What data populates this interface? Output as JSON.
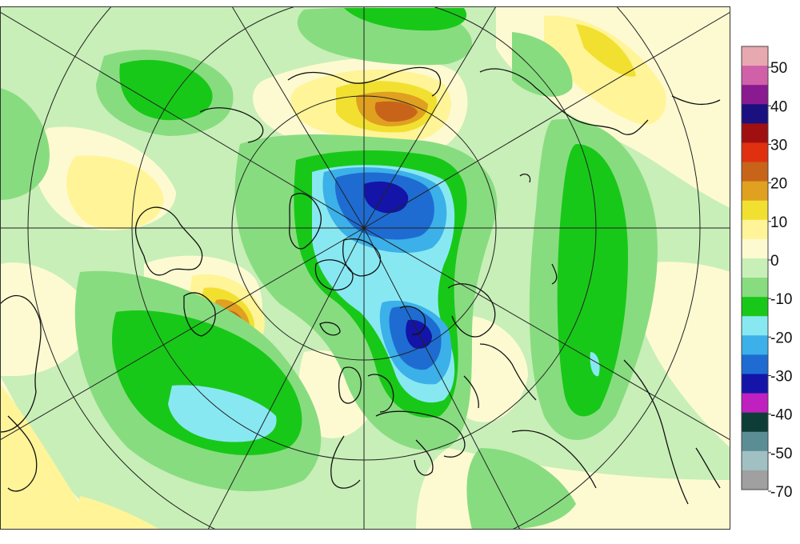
{
  "map": {
    "projection": "north-polar-stereographic",
    "graticule": true,
    "coastlines": true
  },
  "colorbar": {
    "ticks": [
      {
        "label": "50",
        "value": 50
      },
      {
        "label": "40",
        "value": 40
      },
      {
        "label": "30",
        "value": 30
      },
      {
        "label": "20",
        "value": 20
      },
      {
        "label": "10",
        "value": 10
      },
      {
        "label": "0",
        "value": 0
      },
      {
        "label": "-10",
        "value": -10
      },
      {
        "label": "-20",
        "value": -20
      },
      {
        "label": "-30",
        "value": -30
      },
      {
        "label": "-40",
        "value": -40
      },
      {
        "label": "-50",
        "value": -50
      },
      {
        "label": "-70",
        "value": -70
      }
    ],
    "colors_top_to_bottom": [
      "#e8a8b0",
      "#d060a8",
      "#8a1a90",
      "#1a1080",
      "#a01010",
      "#e03010",
      "#c8641a",
      "#e0a020",
      "#f2e030",
      "#fff498",
      "#fdfad2",
      "#c8efb8",
      "#88dc80",
      "#18c818",
      "#88e8f2",
      "#3cb0e8",
      "#1e6cd2",
      "#1414a8",
      "#c020c0",
      "#0e3c36",
      "#5a8e94",
      "#a0c0c4",
      "#a0a0a0"
    ]
  },
  "field_colors": {
    "very_light_green": "#c8efb8",
    "light_green": "#88dc80",
    "green": "#18c818",
    "cream": "#fdfad2",
    "pale_yellow": "#fff498",
    "yellow": "#f2e030",
    "orange": "#e0a020",
    "brown": "#c8641a",
    "light_cyan": "#88e8f2",
    "mid_blue": "#3cb0e8",
    "blue": "#1e6cd2",
    "dark_blue": "#1414a8"
  }
}
